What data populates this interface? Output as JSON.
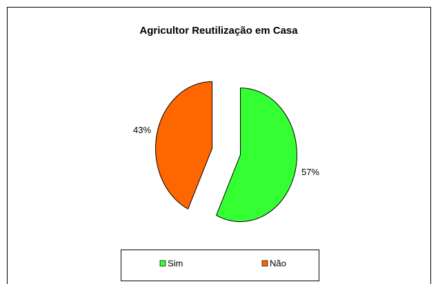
{
  "chart_data": {
    "type": "pie",
    "title": "Agricultor Reutilização em Casa",
    "categories": [
      "Sim",
      "Não"
    ],
    "values": [
      57,
      43
    ],
    "value_labels": [
      "57%",
      "43%"
    ],
    "colors": [
      "#33ff33",
      "#ff6600"
    ],
    "legend": "bottom"
  }
}
